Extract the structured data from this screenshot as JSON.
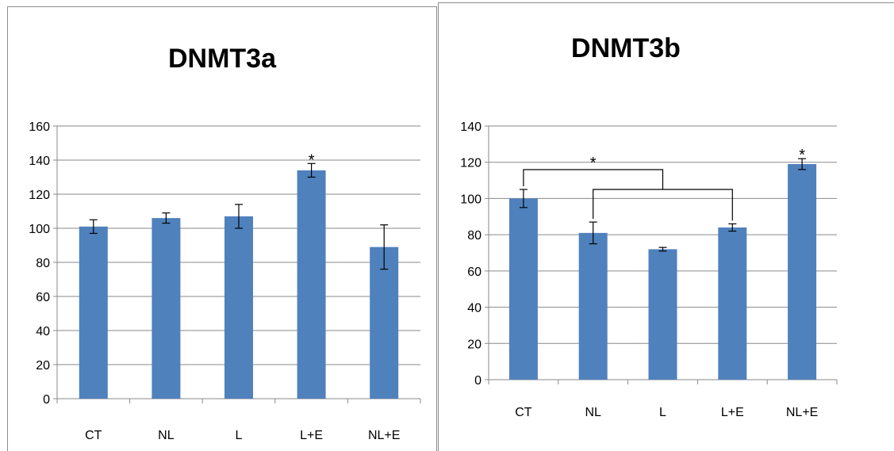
{
  "chart_data": [
    {
      "type": "bar",
      "title": "DNMT3a",
      "categories": [
        "CT",
        "NL",
        "L",
        "L+E",
        "NL+E"
      ],
      "values": [
        101,
        106,
        107,
        134,
        89
      ],
      "errors": [
        4,
        3,
        7,
        4,
        13
      ],
      "ylim": [
        0,
        160
      ],
      "yticks": [
        0,
        20,
        40,
        60,
        80,
        100,
        120,
        140,
        160
      ],
      "grid": true,
      "bar_color": "#4f81bd",
      "annotations": [
        {
          "category": "L+E",
          "text": "*"
        }
      ]
    },
    {
      "type": "bar",
      "title": "DNMT3b",
      "categories": [
        "CT",
        "NL",
        "L",
        "L+E",
        "NL+E"
      ],
      "values": [
        100,
        81,
        72,
        84,
        119
      ],
      "errors": [
        5,
        6,
        1,
        2,
        3
      ],
      "ylim": [
        0,
        140
      ],
      "yticks": [
        0,
        20,
        40,
        60,
        80,
        100,
        120,
        140
      ],
      "grid": true,
      "bar_color": "#4f81bd",
      "annotations": [
        {
          "category": "NL+E",
          "text": "*"
        },
        {
          "type": "bracket",
          "from": "CT",
          "to": [
            "NL",
            "L+E"
          ],
          "text": "*"
        }
      ]
    }
  ]
}
